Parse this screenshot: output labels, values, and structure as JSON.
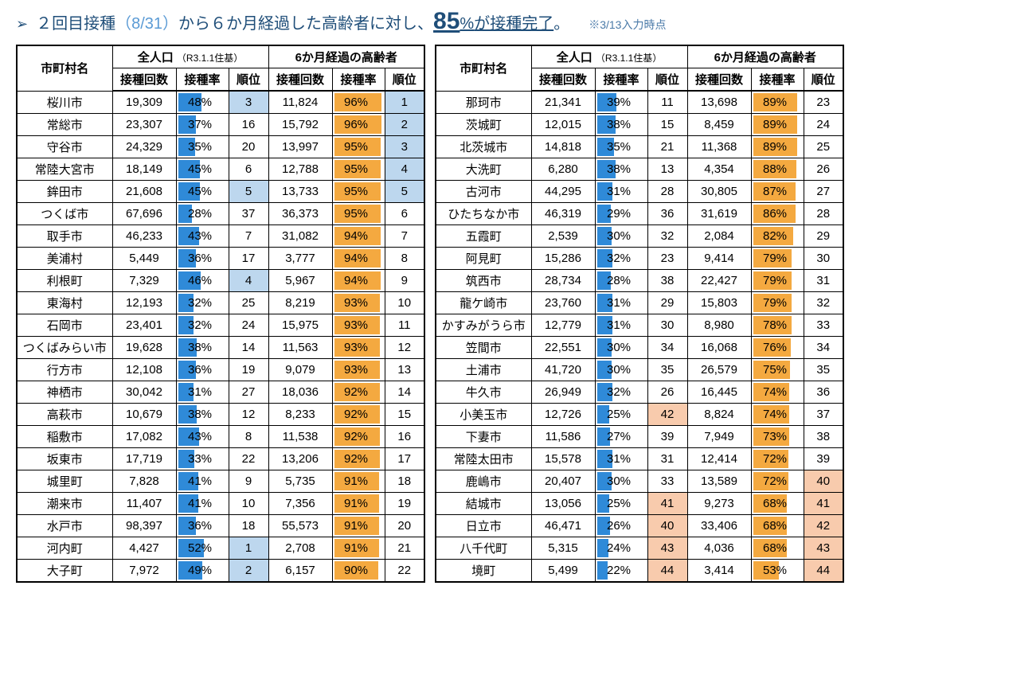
{
  "colors": {
    "title_text": "#1f4e79",
    "title_date": "#5b9bd5",
    "bar_blue": "#2f8ad8",
    "bar_orange": "#f4a940",
    "rank_top_highlight": "#bdd7ee",
    "rank_bottom_highlight": "#f8cbad",
    "border": "#000000",
    "background": "#ffffff"
  },
  "header": {
    "bullet": "➢",
    "text_a": "２回目接種",
    "text_b_date": "（8/31）",
    "text_c": "から６か月経過した高齢者に対し、",
    "pct": "85",
    "pct_suffix": "%",
    "text_d": "が接種完了",
    "text_e": "。",
    "note": "※3/13入力時点"
  },
  "table_headers": {
    "name": "市町村名",
    "group_all": "全人口",
    "group_all_note": "（R3.1.1住基）",
    "group_elderly": "6か月経過の高齢者",
    "count": "接種回数",
    "rate": "接種率",
    "rank": "順位"
  },
  "highlight_rules": {
    "all_rank_top_max": 5,
    "elderly_rank_top_max": 5,
    "rank_bottom_min": 40
  },
  "rows_left": [
    {
      "name": "桜川市",
      "all_count": "19,309",
      "all_rate": 48,
      "all_rank": 3,
      "e_count": "11,824",
      "e_rate": 96,
      "e_rank": 1
    },
    {
      "name": "常総市",
      "all_count": "23,307",
      "all_rate": 37,
      "all_rank": 16,
      "e_count": "15,792",
      "e_rate": 96,
      "e_rank": 2
    },
    {
      "name": "守谷市",
      "all_count": "24,329",
      "all_rate": 35,
      "all_rank": 20,
      "e_count": "13,997",
      "e_rate": 95,
      "e_rank": 3
    },
    {
      "name": "常陸大宮市",
      "all_count": "18,149",
      "all_rate": 45,
      "all_rank": 6,
      "e_count": "12,788",
      "e_rate": 95,
      "e_rank": 4
    },
    {
      "name": "鉾田市",
      "all_count": "21,608",
      "all_rate": 45,
      "all_rank": 5,
      "e_count": "13,733",
      "e_rate": 95,
      "e_rank": 5
    },
    {
      "name": "つくば市",
      "all_count": "67,696",
      "all_rate": 28,
      "all_rank": 37,
      "e_count": "36,373",
      "e_rate": 95,
      "e_rank": 6
    },
    {
      "name": "取手市",
      "all_count": "46,233",
      "all_rate": 43,
      "all_rank": 7,
      "e_count": "31,082",
      "e_rate": 94,
      "e_rank": 7
    },
    {
      "name": "美浦村",
      "all_count": "5,449",
      "all_rate": 36,
      "all_rank": 17,
      "e_count": "3,777",
      "e_rate": 94,
      "e_rank": 8
    },
    {
      "name": "利根町",
      "all_count": "7,329",
      "all_rate": 46,
      "all_rank": 4,
      "e_count": "5,967",
      "e_rate": 94,
      "e_rank": 9
    },
    {
      "name": "東海村",
      "all_count": "12,193",
      "all_rate": 32,
      "all_rank": 25,
      "e_count": "8,219",
      "e_rate": 93,
      "e_rank": 10
    },
    {
      "name": "石岡市",
      "all_count": "23,401",
      "all_rate": 32,
      "all_rank": 24,
      "e_count": "15,975",
      "e_rate": 93,
      "e_rank": 11
    },
    {
      "name": "つくばみらい市",
      "all_count": "19,628",
      "all_rate": 38,
      "all_rank": 14,
      "e_count": "11,563",
      "e_rate": 93,
      "e_rank": 12
    },
    {
      "name": "行方市",
      "all_count": "12,108",
      "all_rate": 36,
      "all_rank": 19,
      "e_count": "9,079",
      "e_rate": 93,
      "e_rank": 13
    },
    {
      "name": "神栖市",
      "all_count": "30,042",
      "all_rate": 31,
      "all_rank": 27,
      "e_count": "18,036",
      "e_rate": 92,
      "e_rank": 14
    },
    {
      "name": "高萩市",
      "all_count": "10,679",
      "all_rate": 38,
      "all_rank": 12,
      "e_count": "8,233",
      "e_rate": 92,
      "e_rank": 15
    },
    {
      "name": "稲敷市",
      "all_count": "17,082",
      "all_rate": 43,
      "all_rank": 8,
      "e_count": "11,538",
      "e_rate": 92,
      "e_rank": 16
    },
    {
      "name": "坂東市",
      "all_count": "17,719",
      "all_rate": 33,
      "all_rank": 22,
      "e_count": "13,206",
      "e_rate": 92,
      "e_rank": 17
    },
    {
      "name": "城里町",
      "all_count": "7,828",
      "all_rate": 41,
      "all_rank": 9,
      "e_count": "5,735",
      "e_rate": 91,
      "e_rank": 18
    },
    {
      "name": "潮来市",
      "all_count": "11,407",
      "all_rate": 41,
      "all_rank": 10,
      "e_count": "7,356",
      "e_rate": 91,
      "e_rank": 19
    },
    {
      "name": "水戸市",
      "all_count": "98,397",
      "all_rate": 36,
      "all_rank": 18,
      "e_count": "55,573",
      "e_rate": 91,
      "e_rank": 20
    },
    {
      "name": "河内町",
      "all_count": "4,427",
      "all_rate": 52,
      "all_rank": 1,
      "e_count": "2,708",
      "e_rate": 91,
      "e_rank": 21
    },
    {
      "name": "大子町",
      "all_count": "7,972",
      "all_rate": 49,
      "all_rank": 2,
      "e_count": "6,157",
      "e_rate": 90,
      "e_rank": 22
    }
  ],
  "rows_right": [
    {
      "name": "那珂市",
      "all_count": "21,341",
      "all_rate": 39,
      "all_rank": 11,
      "e_count": "13,698",
      "e_rate": 89,
      "e_rank": 23
    },
    {
      "name": "茨城町",
      "all_count": "12,015",
      "all_rate": 38,
      "all_rank": 15,
      "e_count": "8,459",
      "e_rate": 89,
      "e_rank": 24
    },
    {
      "name": "北茨城市",
      "all_count": "14,818",
      "all_rate": 35,
      "all_rank": 21,
      "e_count": "11,368",
      "e_rate": 89,
      "e_rank": 25
    },
    {
      "name": "大洗町",
      "all_count": "6,280",
      "all_rate": 38,
      "all_rank": 13,
      "e_count": "4,354",
      "e_rate": 88,
      "e_rank": 26
    },
    {
      "name": "古河市",
      "all_count": "44,295",
      "all_rate": 31,
      "all_rank": 28,
      "e_count": "30,805",
      "e_rate": 87,
      "e_rank": 27
    },
    {
      "name": "ひたちなか市",
      "all_count": "46,319",
      "all_rate": 29,
      "all_rank": 36,
      "e_count": "31,619",
      "e_rate": 86,
      "e_rank": 28
    },
    {
      "name": "五霞町",
      "all_count": "2,539",
      "all_rate": 30,
      "all_rank": 32,
      "e_count": "2,084",
      "e_rate": 82,
      "e_rank": 29
    },
    {
      "name": "阿見町",
      "all_count": "15,286",
      "all_rate": 32,
      "all_rank": 23,
      "e_count": "9,414",
      "e_rate": 79,
      "e_rank": 30
    },
    {
      "name": "筑西市",
      "all_count": "28,734",
      "all_rate": 28,
      "all_rank": 38,
      "e_count": "22,427",
      "e_rate": 79,
      "e_rank": 31
    },
    {
      "name": "龍ケ崎市",
      "all_count": "23,760",
      "all_rate": 31,
      "all_rank": 29,
      "e_count": "15,803",
      "e_rate": 79,
      "e_rank": 32
    },
    {
      "name": "かすみがうら市",
      "all_count": "12,779",
      "all_rate": 31,
      "all_rank": 30,
      "e_count": "8,980",
      "e_rate": 78,
      "e_rank": 33
    },
    {
      "name": "笠間市",
      "all_count": "22,551",
      "all_rate": 30,
      "all_rank": 34,
      "e_count": "16,068",
      "e_rate": 76,
      "e_rank": 34
    },
    {
      "name": "土浦市",
      "all_count": "41,720",
      "all_rate": 30,
      "all_rank": 35,
      "e_count": "26,579",
      "e_rate": 75,
      "e_rank": 35
    },
    {
      "name": "牛久市",
      "all_count": "26,949",
      "all_rate": 32,
      "all_rank": 26,
      "e_count": "16,445",
      "e_rate": 74,
      "e_rank": 36
    },
    {
      "name": "小美玉市",
      "all_count": "12,726",
      "all_rate": 25,
      "all_rank": 42,
      "e_count": "8,824",
      "e_rate": 74,
      "e_rank": 37
    },
    {
      "name": "下妻市",
      "all_count": "11,586",
      "all_rate": 27,
      "all_rank": 39,
      "e_count": "7,949",
      "e_rate": 73,
      "e_rank": 38
    },
    {
      "name": "常陸太田市",
      "all_count": "15,578",
      "all_rate": 31,
      "all_rank": 31,
      "e_count": "12,414",
      "e_rate": 72,
      "e_rank": 39
    },
    {
      "name": "鹿嶋市",
      "all_count": "20,407",
      "all_rate": 30,
      "all_rank": 33,
      "e_count": "13,589",
      "e_rate": 72,
      "e_rank": 40
    },
    {
      "name": "結城市",
      "all_count": "13,056",
      "all_rate": 25,
      "all_rank": 41,
      "e_count": "9,273",
      "e_rate": 68,
      "e_rank": 41
    },
    {
      "name": "日立市",
      "all_count": "46,471",
      "all_rate": 26,
      "all_rank": 40,
      "e_count": "33,406",
      "e_rate": 68,
      "e_rank": 42
    },
    {
      "name": "八千代町",
      "all_count": "5,315",
      "all_rate": 24,
      "all_rank": 43,
      "e_count": "4,036",
      "e_rate": 68,
      "e_rank": 43
    },
    {
      "name": "境町",
      "all_count": "5,499",
      "all_rate": 22,
      "all_rank": 44,
      "e_count": "3,414",
      "e_rate": 53,
      "e_rank": 44
    }
  ]
}
